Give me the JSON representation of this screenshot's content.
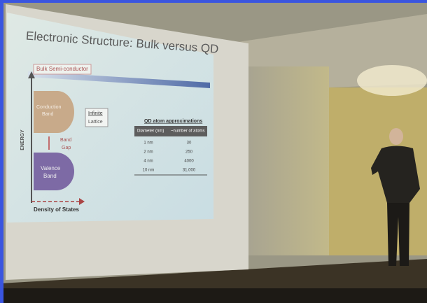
{
  "slide": {
    "title": "Electronic Structure: Bulk versus QD",
    "diagram": {
      "heading": "Bulk Semi-conductor",
      "conduction_band": [
        "Conduction",
        "Band"
      ],
      "band_gap": [
        "Band",
        "Gap"
      ],
      "valence_band": [
        "Valence",
        "Band"
      ],
      "infinite_lattice": [
        "Infinite",
        "Lattice"
      ],
      "y_axis": "ENERGY",
      "x_axis": "Density of States"
    },
    "table": {
      "title": "QD atom approximations",
      "header": [
        "Diameter (nm)",
        "~number of atoms"
      ],
      "rows": [
        [
          "1 nm",
          "30"
        ],
        [
          "2 nm",
          "250"
        ],
        [
          "4 nm",
          "4000"
        ],
        [
          "10 nm",
          "31,000"
        ]
      ]
    }
  }
}
